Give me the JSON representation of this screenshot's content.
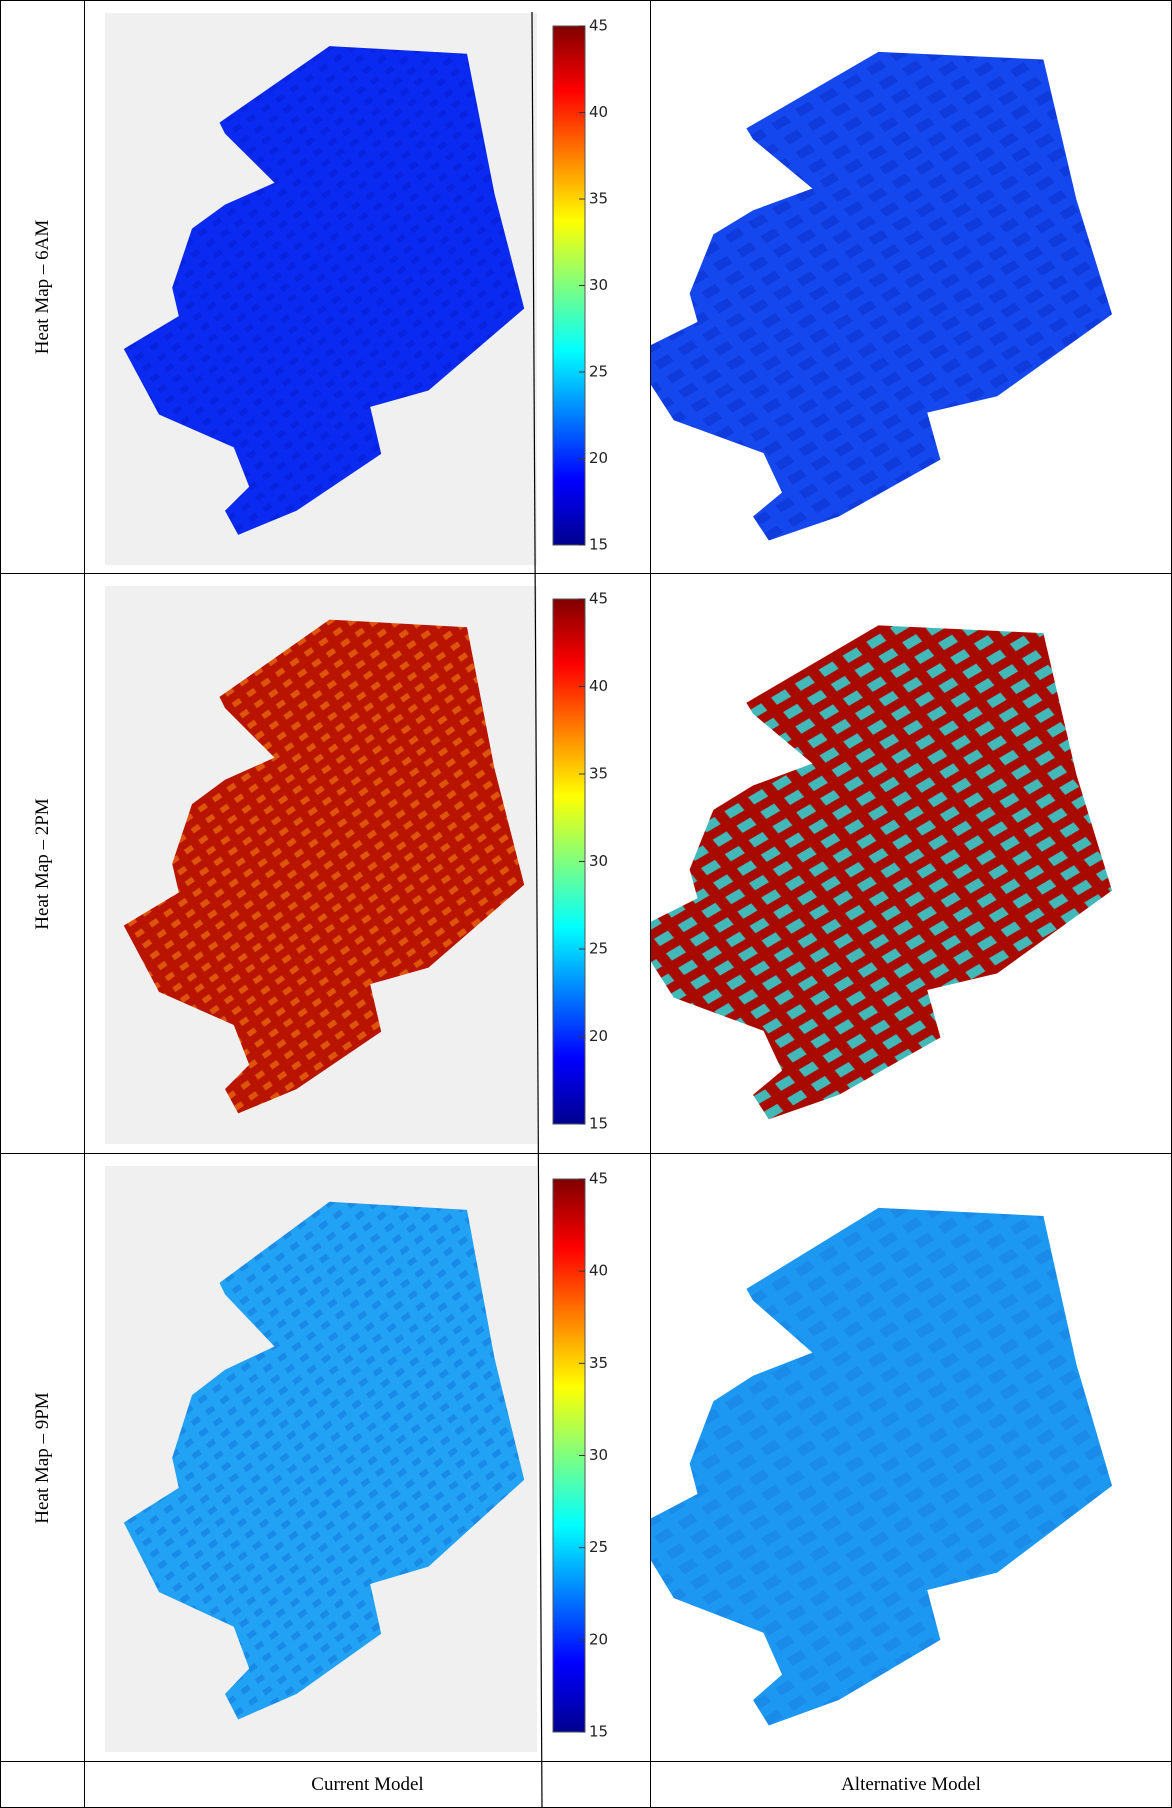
{
  "rows": [
    {
      "label": "Heat Map – 6AM"
    },
    {
      "label": "Heat Map – 2PM"
    },
    {
      "label": "Heat Map – 9PM"
    }
  ],
  "columns": [
    "Current Model",
    "Alternative Model"
  ],
  "colorbar": {
    "ticks": [
      15,
      20,
      25,
      30,
      35,
      40,
      45
    ]
  }
}
